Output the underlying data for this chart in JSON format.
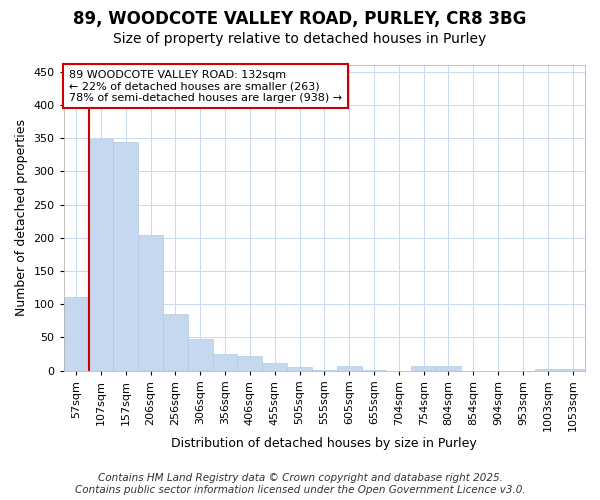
{
  "title1": "89, WOODCOTE VALLEY ROAD, PURLEY, CR8 3BG",
  "title2": "Size of property relative to detached houses in Purley",
  "xlabel": "Distribution of detached houses by size in Purley",
  "ylabel": "Number of detached properties",
  "categories": [
    "57sqm",
    "107sqm",
    "157sqm",
    "206sqm",
    "256sqm",
    "306sqm",
    "356sqm",
    "406sqm",
    "455sqm",
    "505sqm",
    "555sqm",
    "605sqm",
    "655sqm",
    "704sqm",
    "754sqm",
    "804sqm",
    "854sqm",
    "904sqm",
    "953sqm",
    "1003sqm",
    "1053sqm"
  ],
  "values": [
    111,
    349,
    344,
    204,
    86,
    47,
    25,
    22,
    11,
    6,
    1,
    7,
    1,
    0,
    7,
    7,
    0,
    0,
    0,
    3,
    3
  ],
  "bar_color": "#c5d8f0",
  "bar_edgecolor": "#a8c4e0",
  "bg_color": "#ffffff",
  "plot_bg_color": "#ffffff",
  "grid_color": "#c8d8f0",
  "vline_color": "#cc0000",
  "vline_x_index": 1,
  "annotation_text": "89 WOODCOTE VALLEY ROAD: 132sqm\n← 22% of detached houses are smaller (263)\n78% of semi-detached houses are larger (938) →",
  "annotation_box_facecolor": "#ffffff",
  "annotation_box_edgecolor": "#cc0000",
  "footer": "Contains HM Land Registry data © Crown copyright and database right 2025.\nContains public sector information licensed under the Open Government Licence v3.0.",
  "ylim": [
    0,
    460
  ],
  "yticks": [
    0,
    50,
    100,
    150,
    200,
    250,
    300,
    350,
    400,
    450
  ],
  "title_fontsize": 12,
  "subtitle_fontsize": 10,
  "axis_label_fontsize": 9,
  "tick_fontsize": 8,
  "annotation_fontsize": 8,
  "footer_fontsize": 7.5
}
